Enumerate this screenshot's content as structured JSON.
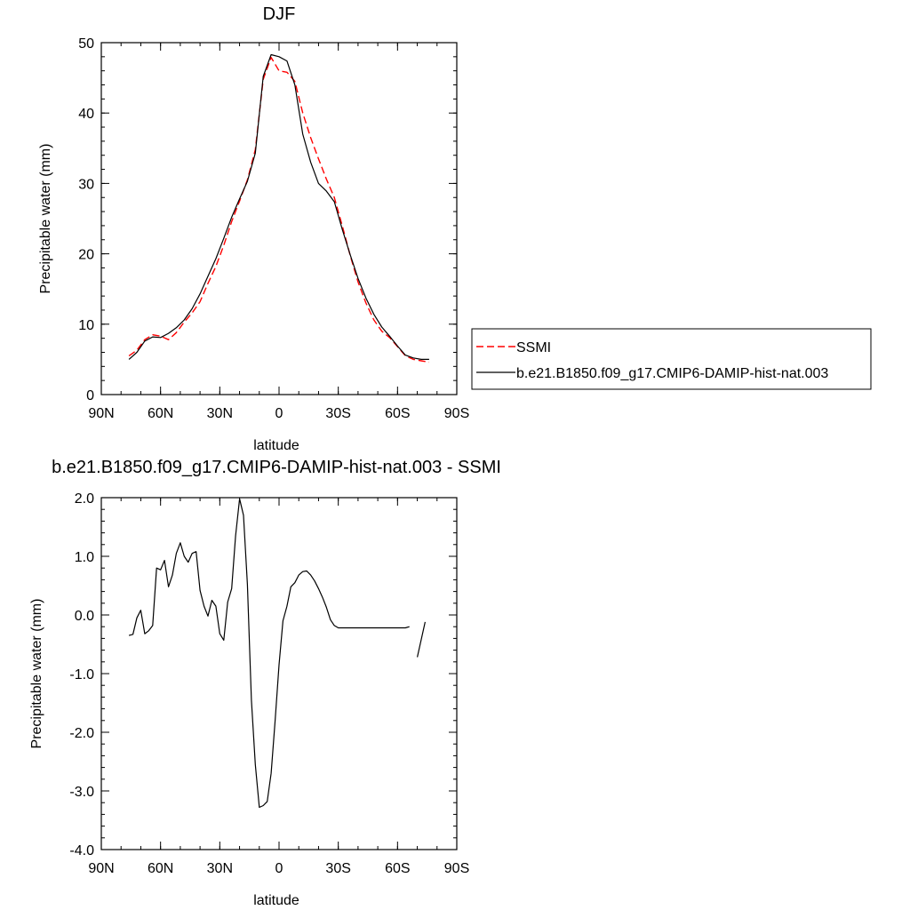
{
  "chart_data": [
    {
      "type": "line",
      "title": "DJF",
      "xlabel": "latitude",
      "ylabel": "Precipitable water (mm)",
      "xlim": [
        -90,
        90
      ],
      "ylim": [
        0,
        50
      ],
      "xticks": [
        -90,
        -60,
        -30,
        0,
        30,
        60,
        90
      ],
      "xtick_labels": [
        "90N",
        "60N",
        "30N",
        "0",
        "30S",
        "60S",
        "90S"
      ],
      "yticks": [
        0,
        10,
        20,
        30,
        40,
        50
      ],
      "ytick_labels": [
        "0",
        "10",
        "20",
        "30",
        "40",
        "50"
      ],
      "grid": false,
      "legend_position": "right",
      "series": [
        {
          "name": "SSMI",
          "color": "#ff0000",
          "style": "dashed",
          "x": [
            -76,
            -72,
            -68,
            -64,
            -60,
            -56,
            -52,
            -48,
            -44,
            -40,
            -36,
            -32,
            -28,
            -24,
            -20,
            -16,
            -12,
            -8,
            -4,
            0,
            4,
            8,
            12,
            16,
            20,
            24,
            28,
            32,
            36,
            40,
            44,
            48,
            52,
            56,
            60,
            64,
            68,
            72,
            76
          ],
          "y": [
            5.5,
            6.3,
            7.8,
            8.5,
            8.3,
            7.8,
            8.8,
            10.3,
            11.6,
            13.2,
            15.8,
            18.2,
            21.2,
            24.6,
            27.5,
            30.5,
            34.8,
            44.8,
            47.9,
            46.0,
            45.8,
            44.5,
            40.0,
            36.5,
            33.5,
            30.6,
            28.0,
            24.0,
            19.8,
            16.0,
            13.0,
            10.6,
            9.0,
            8.1,
            6.8,
            5.5,
            5.0,
            4.8,
            4.6
          ]
        },
        {
          "name": "b.e21.B1850.f09_g17.CMIP6-DAMIP-hist-nat.003",
          "color": "#000000",
          "style": "solid",
          "x": [
            -76,
            -72,
            -68,
            -64,
            -60,
            -56,
            -52,
            -48,
            -44,
            -40,
            -36,
            -32,
            -28,
            -24,
            -20,
            -16,
            -12,
            -8,
            -4,
            0,
            4,
            8,
            12,
            16,
            20,
            24,
            28,
            32,
            36,
            40,
            44,
            48,
            52,
            56,
            60,
            64,
            68,
            72,
            76
          ],
          "y": [
            5.0,
            6.0,
            7.6,
            8.2,
            8.1,
            8.7,
            9.5,
            10.6,
            12.2,
            14.3,
            16.8,
            19.3,
            22.2,
            25.2,
            27.8,
            30.3,
            34.3,
            45.2,
            48.3,
            48.0,
            47.4,
            44.0,
            37.0,
            33.0,
            30.0,
            28.9,
            27.4,
            23.5,
            19.9,
            16.5,
            13.7,
            11.4,
            9.6,
            8.3,
            6.9,
            5.6,
            5.2,
            5.0,
            5.0
          ]
        }
      ]
    },
    {
      "type": "line",
      "title": "b.e21.B1850.f09_g17.CMIP6-DAMIP-hist-nat.003 - SSMI",
      "xlabel": "latitude",
      "ylabel": "Precipitable water (mm)",
      "xlim": [
        -90,
        90
      ],
      "ylim": [
        -4,
        2
      ],
      "xticks": [
        -90,
        -60,
        -30,
        0,
        30,
        60,
        90
      ],
      "xtick_labels": [
        "90N",
        "60N",
        "30N",
        "0",
        "30S",
        "60S",
        "90S"
      ],
      "yticks": [
        -4,
        -3,
        -2,
        -1,
        0,
        1,
        2
      ],
      "ytick_labels": [
        "-4.0",
        "-3.0",
        "-2.0",
        "-1.0",
        "0.0",
        "1.0",
        "2.0"
      ],
      "grid": false,
      "series": [
        {
          "color": "#000000",
          "style": "solid",
          "segments": [
            {
              "x": [
                -76,
                -74,
                -72,
                -70,
                -68,
                -66,
                -64,
                -62,
                -60,
                -58,
                -56,
                -54,
                -52,
                -50,
                -48,
                -46,
                -44,
                -42,
                -40,
                -38,
                -36,
                -34,
                -32,
                -30,
                -28,
                -26,
                -24,
                -22,
                -20,
                -18,
                -16,
                -14,
                -12,
                -10,
                -8,
                -6,
                -4,
                -2,
                0,
                2,
                4,
                6,
                8,
                10,
                12,
                14,
                16,
                18,
                20,
                22,
                24,
                26,
                28,
                30,
                32,
                34,
                36,
                38,
                40,
                42,
                44,
                46,
                48,
                50,
                52,
                54,
                56,
                58,
                60,
                62,
                64,
                66
              ],
              "y": [
                -0.35,
                -0.33,
                -0.05,
                0.08,
                -0.32,
                -0.27,
                -0.18,
                0.8,
                0.77,
                0.93,
                0.48,
                0.68,
                1.05,
                1.23,
                1.0,
                0.9,
                1.05,
                1.08,
                0.42,
                0.15,
                -0.02,
                0.25,
                0.15,
                -0.32,
                -0.43,
                0.22,
                0.45,
                1.35,
                1.98,
                1.7,
                0.52,
                -1.45,
                -2.55,
                -3.28,
                -3.25,
                -3.18,
                -2.7,
                -1.8,
                -0.85,
                -0.1,
                0.15,
                0.48,
                0.55,
                0.68,
                0.74,
                0.75,
                0.68,
                0.58,
                0.45,
                0.3,
                0.13,
                -0.08,
                -0.18,
                -0.22,
                -0.22,
                -0.22,
                -0.22,
                -0.22,
                -0.22,
                -0.22,
                -0.22,
                -0.22,
                -0.22,
                -0.22,
                -0.22,
                -0.22,
                -0.22,
                -0.22,
                -0.22,
                -0.22,
                -0.22,
                -0.2
              ]
            },
            {
              "x": [
                70,
                74
              ],
              "y": [
                -0.72,
                -0.12
              ]
            }
          ]
        }
      ]
    }
  ]
}
